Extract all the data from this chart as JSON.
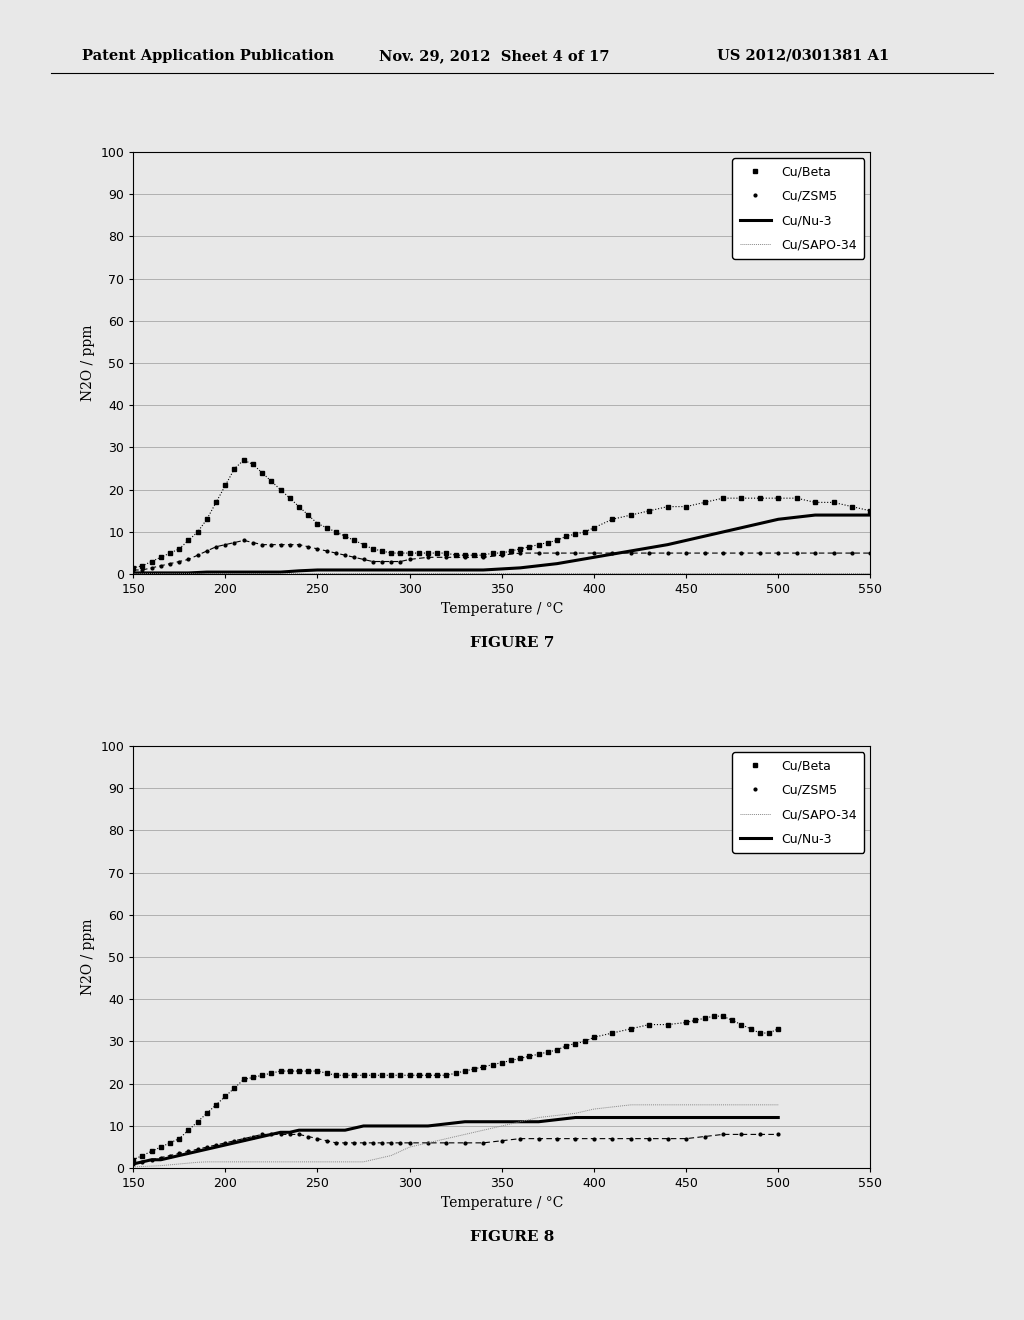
{
  "header_left": "Patent Application Publication",
  "header_mid": "Nov. 29, 2012  Sheet 4 of 17",
  "header_right": "US 2012/0301381 A1",
  "fig7_title": "FIGURE 7",
  "fig8_title": "FIGURE 8",
  "xlabel": "Temperature / °C",
  "ylabel": "N2O / ppm",
  "xlim": [
    150,
    550
  ],
  "ylim": [
    0,
    100
  ],
  "xticks": [
    150,
    200,
    250,
    300,
    350,
    400,
    450,
    500,
    550
  ],
  "yticks": [
    0,
    10,
    20,
    30,
    40,
    50,
    60,
    70,
    80,
    90,
    100
  ],
  "background": "#e8e8e8",
  "fig7": {
    "CuBeta_x": [
      150,
      155,
      160,
      165,
      170,
      175,
      180,
      185,
      190,
      195,
      200,
      205,
      210,
      215,
      220,
      225,
      230,
      235,
      240,
      245,
      250,
      255,
      260,
      265,
      270,
      275,
      280,
      285,
      290,
      295,
      300,
      305,
      310,
      315,
      320,
      325,
      330,
      335,
      340,
      345,
      350,
      355,
      360,
      365,
      370,
      375,
      380,
      385,
      390,
      395,
      400,
      410,
      420,
      430,
      440,
      450,
      460,
      470,
      480,
      490,
      500,
      510,
      520,
      530,
      540,
      550
    ],
    "CuBeta_y": [
      1.5,
      2,
      3,
      4,
      5,
      6,
      8,
      10,
      13,
      17,
      21,
      25,
      27,
      26,
      24,
      22,
      20,
      18,
      16,
      14,
      12,
      11,
      10,
      9,
      8,
      7,
      6,
      5.5,
      5,
      5,
      5,
      5,
      5,
      5,
      5,
      4.5,
      4.5,
      4.5,
      4.5,
      5,
      5,
      5.5,
      6,
      6.5,
      7,
      7.5,
      8,
      9,
      9.5,
      10,
      11,
      13,
      14,
      15,
      16,
      16,
      17,
      18,
      18,
      18,
      18,
      18,
      17,
      17,
      16,
      15
    ],
    "CuZSM5_x": [
      150,
      155,
      160,
      165,
      170,
      175,
      180,
      185,
      190,
      195,
      200,
      205,
      210,
      215,
      220,
      225,
      230,
      235,
      240,
      245,
      250,
      255,
      260,
      265,
      270,
      275,
      280,
      285,
      290,
      295,
      300,
      310,
      320,
      330,
      340,
      350,
      360,
      370,
      380,
      390,
      400,
      410,
      420,
      430,
      440,
      450,
      460,
      470,
      480,
      490,
      500,
      510,
      520,
      530,
      540,
      550
    ],
    "CuZSM5_y": [
      1,
      1,
      1.5,
      2,
      2.5,
      3,
      3.5,
      4.5,
      5.5,
      6.5,
      7,
      7.5,
      8,
      7.5,
      7,
      7,
      7,
      7,
      7,
      6.5,
      6,
      5.5,
      5,
      4.5,
      4,
      3.5,
      3,
      3,
      3,
      3,
      3.5,
      4,
      4,
      4,
      4,
      4.5,
      5,
      5,
      5,
      5,
      5,
      5,
      5,
      5,
      5,
      5,
      5,
      5,
      5,
      5,
      5,
      5,
      5,
      5,
      5,
      5
    ],
    "CuNu3_x": [
      150,
      160,
      170,
      180,
      190,
      200,
      210,
      220,
      230,
      240,
      250,
      260,
      270,
      280,
      290,
      300,
      320,
      340,
      360,
      380,
      400,
      420,
      440,
      460,
      480,
      500,
      520,
      540,
      550
    ],
    "CuNu3_y": [
      0.3,
      0.3,
      0.3,
      0.3,
      0.5,
      0.5,
      0.5,
      0.5,
      0.5,
      0.8,
      1,
      1,
      1,
      1,
      1,
      1,
      1,
      1,
      1.5,
      2.5,
      4,
      5.5,
      7,
      9,
      11,
      13,
      14,
      14,
      14
    ],
    "CuSAPO_x": [
      150,
      160,
      170,
      180,
      190,
      200,
      210,
      220,
      230,
      240,
      250,
      260,
      270,
      280,
      290,
      300,
      310,
      320,
      330,
      340,
      350,
      360,
      370,
      380,
      390,
      400,
      410,
      420,
      430,
      440,
      450,
      460,
      470,
      480,
      490,
      500,
      510,
      520,
      530,
      540,
      550
    ],
    "CuSAPO_y": [
      0.2,
      0.2,
      0.2,
      0.2,
      0.2,
      0.2,
      0.2,
      0.2,
      0.2,
      0.2,
      0.2,
      0.2,
      0.2,
      0.2,
      0.2,
      0.2,
      0.2,
      0.2,
      0.2,
      0.2,
      0.2,
      0.2,
      0.2,
      0.2,
      0.2,
      0.2,
      0.2,
      0.2,
      0.2,
      0.2,
      0.2,
      0.2,
      0.2,
      0.2,
      0.2,
      0.2,
      0.2,
      0.2,
      0.2,
      0.2,
      0.2
    ]
  },
  "fig8": {
    "CuBeta_x": [
      150,
      155,
      160,
      165,
      170,
      175,
      180,
      185,
      190,
      195,
      200,
      205,
      210,
      215,
      220,
      225,
      230,
      235,
      240,
      245,
      250,
      255,
      260,
      265,
      270,
      275,
      280,
      285,
      290,
      295,
      300,
      305,
      310,
      315,
      320,
      325,
      330,
      335,
      340,
      345,
      350,
      355,
      360,
      365,
      370,
      375,
      380,
      385,
      390,
      395,
      400,
      410,
      420,
      430,
      440,
      450,
      455,
      460,
      465,
      470,
      475,
      480,
      485,
      490,
      495,
      500
    ],
    "CuBeta_y": [
      2,
      3,
      4,
      5,
      6,
      7,
      9,
      11,
      13,
      15,
      17,
      19,
      21,
      21.5,
      22,
      22.5,
      23,
      23,
      23,
      23,
      23,
      22.5,
      22,
      22,
      22,
      22,
      22,
      22,
      22,
      22,
      22,
      22,
      22,
      22,
      22,
      22.5,
      23,
      23.5,
      24,
      24.5,
      25,
      25.5,
      26,
      26.5,
      27,
      27.5,
      28,
      29,
      29.5,
      30,
      31,
      32,
      33,
      34,
      34,
      34.5,
      35,
      35.5,
      36,
      36,
      35,
      34,
      33,
      32,
      32,
      33
    ],
    "CuZSM5_x": [
      150,
      155,
      160,
      165,
      170,
      175,
      180,
      185,
      190,
      195,
      200,
      205,
      210,
      215,
      220,
      225,
      230,
      235,
      240,
      245,
      250,
      255,
      260,
      265,
      270,
      275,
      280,
      285,
      290,
      295,
      300,
      310,
      320,
      330,
      340,
      350,
      360,
      370,
      380,
      390,
      400,
      410,
      420,
      430,
      440,
      450,
      460,
      470,
      480,
      490,
      500
    ],
    "CuZSM5_y": [
      1,
      1.5,
      2,
      2.5,
      3,
      3.5,
      4,
      4.5,
      5,
      5.5,
      6,
      6.5,
      7,
      7.5,
      8,
      8,
      8,
      8,
      8,
      7.5,
      7,
      6.5,
      6,
      6,
      6,
      6,
      6,
      6,
      6,
      6,
      6,
      6,
      6,
      6,
      6,
      6.5,
      7,
      7,
      7,
      7,
      7,
      7,
      7,
      7,
      7,
      7,
      7.5,
      8,
      8,
      8,
      8
    ],
    "CuSAPO_x": [
      150,
      155,
      160,
      165,
      170,
      175,
      180,
      185,
      190,
      195,
      200,
      205,
      210,
      215,
      220,
      225,
      230,
      235,
      240,
      245,
      250,
      255,
      260,
      265,
      270,
      275,
      280,
      285,
      290,
      295,
      300,
      310,
      320,
      330,
      340,
      350,
      360,
      370,
      380,
      390,
      400,
      410,
      420,
      430,
      440,
      450,
      460,
      470,
      480,
      490,
      500
    ],
    "CuSAPO_y": [
      0.3,
      0.4,
      0.5,
      0.6,
      0.8,
      1,
      1.2,
      1.4,
      1.5,
      1.5,
      1.5,
      1.5,
      1.5,
      1.5,
      1.5,
      1.5,
      1.5,
      1.5,
      1.5,
      1.5,
      1.5,
      1.5,
      1.5,
      1.5,
      1.5,
      1.5,
      2,
      2.5,
      3,
      4,
      5,
      6,
      7,
      8,
      9,
      10,
      11,
      12,
      12.5,
      13,
      14,
      14.5,
      15,
      15,
      15,
      15,
      15,
      15,
      15,
      15,
      15
    ],
    "CuNu3_x": [
      150,
      155,
      160,
      165,
      170,
      175,
      180,
      185,
      190,
      195,
      200,
      205,
      210,
      215,
      220,
      225,
      230,
      235,
      240,
      245,
      250,
      255,
      260,
      265,
      270,
      275,
      280,
      285,
      290,
      295,
      300,
      310,
      320,
      330,
      340,
      350,
      360,
      370,
      380,
      390,
      400,
      410,
      420,
      430,
      440,
      450,
      460,
      470,
      480,
      490,
      500
    ],
    "CuNu3_y": [
      1,
      1.5,
      2,
      2,
      2.5,
      3,
      3.5,
      4,
      4.5,
      5,
      5.5,
      6,
      6.5,
      7,
      7.5,
      8,
      8.5,
      8.5,
      9,
      9,
      9,
      9,
      9,
      9,
      9.5,
      10,
      10,
      10,
      10,
      10,
      10,
      10,
      10.5,
      11,
      11,
      11,
      11,
      11,
      11.5,
      12,
      12,
      12,
      12,
      12,
      12,
      12,
      12,
      12,
      12,
      12,
      12
    ]
  }
}
